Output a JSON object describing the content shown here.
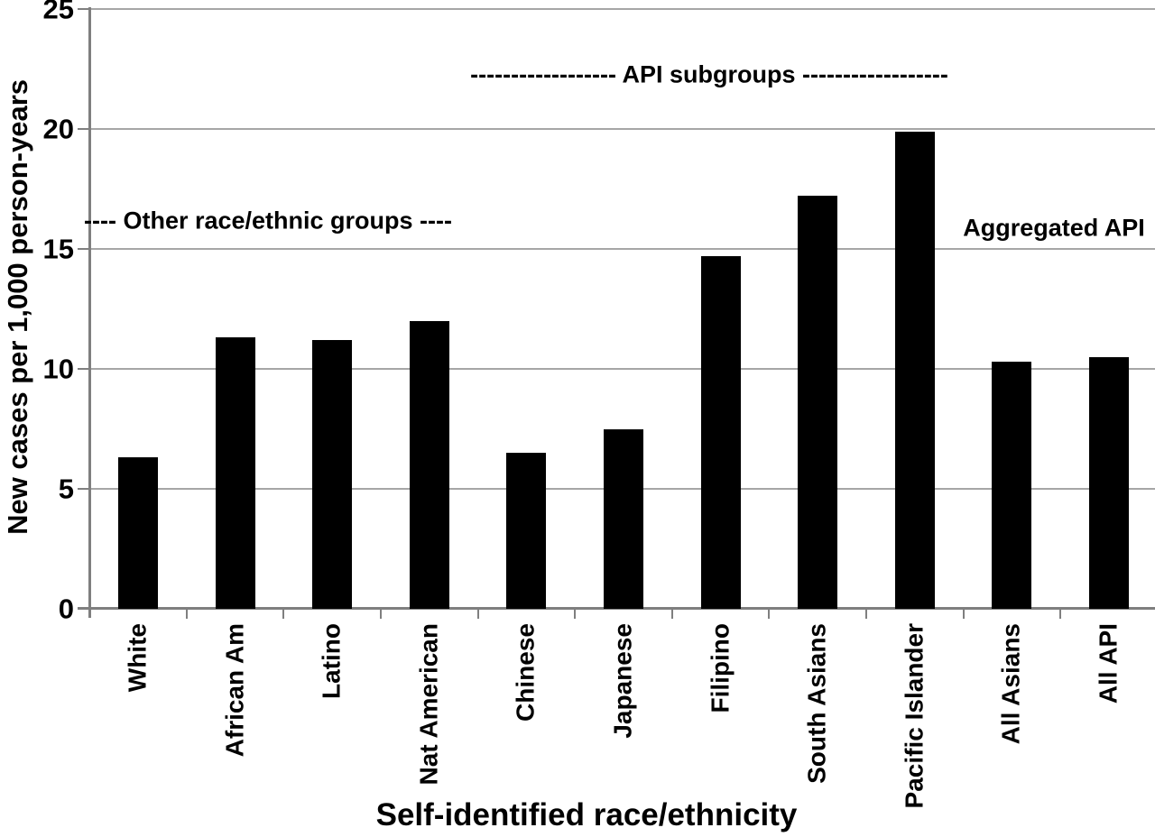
{
  "figure": {
    "background_color": "#ffffff",
    "bar_color": "#000000",
    "axis_color": "#7f7f7f",
    "gridline_color": "#a6a6a6",
    "text_color": "#000000"
  },
  "chart_data": {
    "type": "bar",
    "title": "",
    "xlabel": "Self-identified race/ethnicity",
    "ylabel": "New cases per 1,000 person-years",
    "categories": [
      "White",
      "African Am",
      "Latino",
      "Nat American",
      "Chinese",
      "Japanese",
      "Filipino",
      "South Asians",
      "Pacific Islander",
      "All Asians",
      "All API"
    ],
    "values": [
      6.3,
      11.3,
      11.2,
      12.0,
      6.5,
      7.5,
      14.7,
      17.2,
      19.9,
      10.3,
      10.5
    ],
    "ylim": [
      0,
      25
    ],
    "yticks": [
      0,
      5,
      10,
      15,
      20,
      25
    ],
    "grid": "horizontal",
    "legend": "none",
    "bar_style": "solid black, single series",
    "x_label_orientation": "vertical-bottom-to-top",
    "annotations": [
      {
        "id": "other-groups",
        "text": "---- Other race/ethnic groups ----",
        "y_value": 16.2,
        "spans_categories": "White to Nat American"
      },
      {
        "id": "api-subgroups",
        "text": "------------------ API subgroups ------------------",
        "y_value": 22.2,
        "spans_categories": "Chinese to Pacific Islander"
      },
      {
        "id": "aggregated-api",
        "text": "Aggregated API",
        "y_value": 15.9,
        "spans_categories": "All Asians to All API"
      }
    ]
  }
}
